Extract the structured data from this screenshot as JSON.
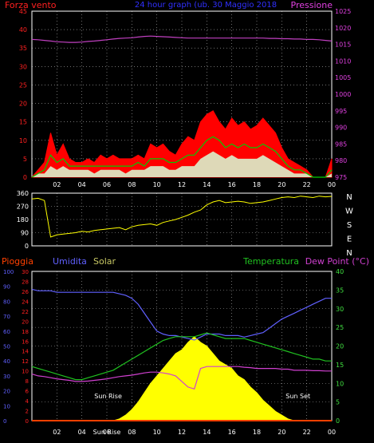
{
  "header": {
    "left_label": "Forza vento",
    "center_title": "24 hour graph (ub. 30 Maggio 2018",
    "right_label": "Pressione"
  },
  "colors": {
    "background": "#000000",
    "grid": "#ffffff",
    "axis_red": "#ff2020",
    "axis_magenta": "#e040e0",
    "axis_green": "#40e040",
    "axis_blue": "#6060ff",
    "title_blue": "#3030ff",
    "wind_gust": "#ff0000",
    "wind_avg": "#00cc00",
    "wind_speed": "#ffffff",
    "pressure": "#c040c0",
    "direction": "#ffff00",
    "humidity": "#6060ff",
    "temperature": "#20c020",
    "dew_point": "#d040d0",
    "solar": "#ffff00",
    "rain": "#ff4000",
    "solar_label": "#c8c864"
  },
  "chart_data": [
    {
      "type": "line",
      "title": "24 hour graph (ub. 30 Maggio 2018",
      "ylabel_left": "Forza vento",
      "ylabel_right": "Pressione",
      "x_ticks": [
        "02",
        "04",
        "06",
        "08",
        "10",
        "12",
        "14",
        "16",
        "18",
        "20",
        "22",
        "00"
      ],
      "y_left_ticks": [
        0,
        5,
        10,
        15,
        20,
        25,
        30,
        35,
        40,
        45
      ],
      "y_right_ticks": [
        975,
        980,
        985,
        990,
        995,
        1000,
        1005,
        1010,
        1015,
        1020,
        1025
      ],
      "ylim_left": [
        0,
        45
      ],
      "ylim_right": [
        975,
        1025
      ],
      "x_hours": [
        0,
        0.5,
        1,
        1.5,
        2,
        2.5,
        3,
        3.5,
        4,
        4.5,
        5,
        5.5,
        6,
        6.5,
        7,
        7.5,
        8,
        8.5,
        9,
        9.5,
        10,
        10.5,
        11,
        11.5,
        12,
        12.5,
        13,
        13.5,
        14,
        14.5,
        15,
        15.5,
        16,
        16.5,
        17,
        17.5,
        18,
        18.5,
        19,
        19.5,
        20,
        20.5,
        21,
        21.5,
        22,
        22.5,
        23,
        23.5,
        24
      ],
      "series": [
        {
          "name": "Forza vento",
          "role": "gust",
          "values": [
            0,
            2,
            4,
            12,
            6,
            9,
            5,
            4,
            4,
            5,
            4,
            6,
            5,
            6,
            5,
            5,
            5,
            6,
            5,
            9,
            8,
            9,
            7,
            6,
            9,
            11,
            10,
            15,
            17,
            18,
            15,
            13,
            16,
            14,
            15,
            13,
            14,
            16,
            14,
            12,
            8,
            5,
            4,
            3,
            2,
            0,
            0,
            0,
            5
          ]
        },
        {
          "name": "media",
          "role": "avg",
          "values": [
            0,
            1,
            2,
            6,
            4,
            5,
            3,
            3,
            3,
            3,
            3,
            3,
            3,
            3,
            3,
            3,
            3,
            4,
            3,
            5,
            5,
            5,
            4,
            4,
            5,
            6,
            6,
            8,
            10,
            11,
            10,
            8,
            9,
            8,
            9,
            8,
            8,
            9,
            8,
            7,
            5,
            3,
            2,
            2,
            1,
            0,
            0,
            0,
            2
          ]
        },
        {
          "name": "velocita",
          "role": "speed",
          "values": [
            0,
            1,
            1,
            3,
            2,
            3,
            2,
            2,
            2,
            2,
            1,
            2,
            2,
            2,
            2,
            1,
            2,
            2,
            2,
            3,
            3,
            3,
            2,
            2,
            3,
            3,
            3,
            5,
            6,
            7,
            6,
            5,
            6,
            5,
            5,
            5,
            5,
            6,
            5,
            4,
            3,
            2,
            1,
            1,
            1,
            0,
            0,
            0,
            1
          ]
        },
        {
          "name": "Pressione",
          "role": "pressure",
          "axis": "right",
          "values": [
            1016.5,
            1016.4,
            1016.2,
            1016.0,
            1015.8,
            1015.7,
            1015.6,
            1015.6,
            1015.7,
            1015.9,
            1016.0,
            1016.2,
            1016.4,
            1016.6,
            1016.8,
            1016.9,
            1017.0,
            1017.2,
            1017.4,
            1017.5,
            1017.4,
            1017.3,
            1017.2,
            1017.1,
            1017.0,
            1016.9,
            1016.9,
            1016.9,
            1016.9,
            1016.9,
            1016.9,
            1016.9,
            1016.9,
            1016.9,
            1016.9,
            1016.9,
            1016.9,
            1016.9,
            1016.8,
            1016.8,
            1016.7,
            1016.7,
            1016.6,
            1016.6,
            1016.5,
            1016.5,
            1016.4,
            1016.2,
            1016.0
          ]
        }
      ]
    },
    {
      "type": "scatter",
      "ylim": [
        0,
        360
      ],
      "y_left_ticks": [
        0,
        90,
        180,
        270,
        360
      ],
      "direction_labels": [
        "N",
        "W",
        "S",
        "E",
        "N"
      ],
      "x_hours": [
        0,
        0.5,
        1,
        1.5,
        2,
        2.5,
        3,
        3.5,
        4,
        4.5,
        5,
        5.5,
        6,
        6.5,
        7,
        7.5,
        8,
        8.5,
        9,
        9.5,
        10,
        10.5,
        11,
        11.5,
        12,
        12.5,
        13,
        13.5,
        14,
        14.5,
        15,
        15.5,
        16,
        16.5,
        17,
        17.5,
        18,
        18.5,
        19,
        19.5,
        20,
        20.5,
        21,
        21.5,
        22,
        22.5,
        23,
        23.5,
        24
      ],
      "series": [
        {
          "name": "direzione",
          "values": [
            320,
            325,
            310,
            60,
            75,
            80,
            85,
            90,
            100,
            95,
            105,
            110,
            115,
            120,
            125,
            110,
            130,
            140,
            145,
            150,
            140,
            160,
            170,
            180,
            195,
            210,
            230,
            245,
            280,
            300,
            310,
            295,
            300,
            305,
            300,
            290,
            295,
            300,
            310,
            320,
            330,
            335,
            330,
            340,
            335,
            330,
            340,
            335,
            338
          ]
        }
      ]
    },
    {
      "type": "line",
      "legend": [
        "Pioggia",
        "Umidita",
        "Solar",
        "Temperatura",
        "Dew Point (°C)"
      ],
      "x_ticks": [
        "02",
        "04",
        "06",
        "08",
        "10",
        "12",
        "14",
        "16",
        "18",
        "20",
        "22",
        "00"
      ],
      "y_ticks_humidity": [
        0,
        10,
        20,
        30,
        40,
        50,
        60,
        70,
        80,
        90,
        100
      ],
      "y_ticks_rain": [
        0,
        2,
        4,
        6,
        8,
        10,
        12,
        14,
        16,
        18,
        20,
        22,
        24,
        26,
        28,
        30
      ],
      "y_ticks_temp": [
        0,
        5,
        10,
        15,
        20,
        25,
        30,
        35,
        40
      ],
      "ylim_temp": [
        0,
        40
      ],
      "ylim_humidity": [
        0,
        100
      ],
      "annotations": [
        {
          "text": "Sun Rise",
          "x_hour": 6.1
        },
        {
          "text": "Sun Set",
          "x_hour": 21.3
        },
        {
          "text": "Sun Rise",
          "x_hour": 6.0
        }
      ],
      "x_hours": [
        0,
        0.5,
        1,
        1.5,
        2,
        2.5,
        3,
        3.5,
        4,
        4.5,
        5,
        5.5,
        6,
        6.5,
        7,
        7.5,
        8,
        8.5,
        9,
        9.5,
        10,
        10.5,
        11,
        11.5,
        12,
        12.5,
        13,
        13.5,
        14,
        14.5,
        15,
        15.5,
        16,
        16.5,
        17,
        17.5,
        18,
        18.5,
        19,
        19.5,
        20,
        20.5,
        21,
        21.5,
        22,
        22.5,
        23,
        23.5,
        24
      ],
      "series": [
        {
          "name": "Umidita",
          "axis": "humidity",
          "values": [
            88,
            87,
            87,
            87,
            86,
            86,
            86,
            86,
            86,
            86,
            86,
            86,
            86,
            86,
            85,
            84,
            82,
            78,
            72,
            66,
            60,
            58,
            57,
            57,
            56,
            55,
            54,
            56,
            58,
            58,
            58,
            57,
            57,
            57,
            56,
            57,
            58,
            59,
            62,
            65,
            68,
            70,
            72,
            74,
            76,
            78,
            80,
            82,
            82
          ]
        },
        {
          "name": "Temperatura",
          "axis": "temp",
          "values": [
            14.5,
            14.0,
            13.5,
            13.0,
            12.5,
            12.0,
            11.5,
            11.0,
            11.0,
            11.5,
            12.0,
            12.5,
            13.0,
            13.5,
            14.5,
            15.5,
            16.5,
            17.5,
            18.5,
            19.5,
            20.5,
            21.5,
            22.0,
            22.5,
            22.5,
            22.5,
            22.5,
            23.0,
            23.5,
            23.0,
            22.5,
            22.0,
            22.0,
            22.0,
            22.0,
            21.5,
            21.0,
            20.5,
            20.0,
            19.5,
            19.0,
            18.5,
            18.0,
            17.5,
            17.0,
            16.5,
            16.5,
            16.0,
            16.0
          ]
        },
        {
          "name": "Dew Point (°C)",
          "axis": "temp",
          "values": [
            12.5,
            12.0,
            11.8,
            11.5,
            11.2,
            11.0,
            10.8,
            10.5,
            10.5,
            10.6,
            10.8,
            11.0,
            11.2,
            11.5,
            11.8,
            12.0,
            12.2,
            12.5,
            12.8,
            13.0,
            13.0,
            12.8,
            12.5,
            12.0,
            10.5,
            9.0,
            8.5,
            14.0,
            14.5,
            14.5,
            14.5,
            14.5,
            14.5,
            14.5,
            14.3,
            14.2,
            14.0,
            14.0,
            14.0,
            14.0,
            13.8,
            13.8,
            13.5,
            13.5,
            13.5,
            13.4,
            13.4,
            13.3,
            13.3
          ]
        },
        {
          "name": "Solar",
          "axis": "temp",
          "values": [
            0,
            0,
            0,
            0,
            0,
            0,
            0,
            0,
            0,
            0,
            0,
            0,
            0,
            0,
            0.5,
            1.5,
            3,
            5,
            7.5,
            10,
            12,
            14,
            16,
            18,
            19,
            21,
            22.5,
            21,
            20,
            18,
            16,
            15,
            14,
            12,
            11,
            9,
            7.5,
            5.5,
            4,
            2.5,
            1.5,
            0.5,
            0,
            0,
            0,
            0,
            0,
            0,
            0
          ]
        },
        {
          "name": "Pioggia",
          "axis": "rain",
          "values": [
            0,
            0,
            0,
            0,
            0,
            0,
            0,
            0,
            0,
            0,
            0,
            0,
            0,
            0,
            0,
            0,
            0,
            0,
            0,
            0,
            0,
            0,
            0,
            0,
            0,
            0,
            0,
            0,
            0,
            0,
            0,
            0,
            0,
            0,
            0,
            0,
            0,
            0,
            0,
            0,
            0,
            0,
            0,
            0,
            0,
            0,
            0,
            0,
            0
          ]
        }
      ]
    }
  ]
}
